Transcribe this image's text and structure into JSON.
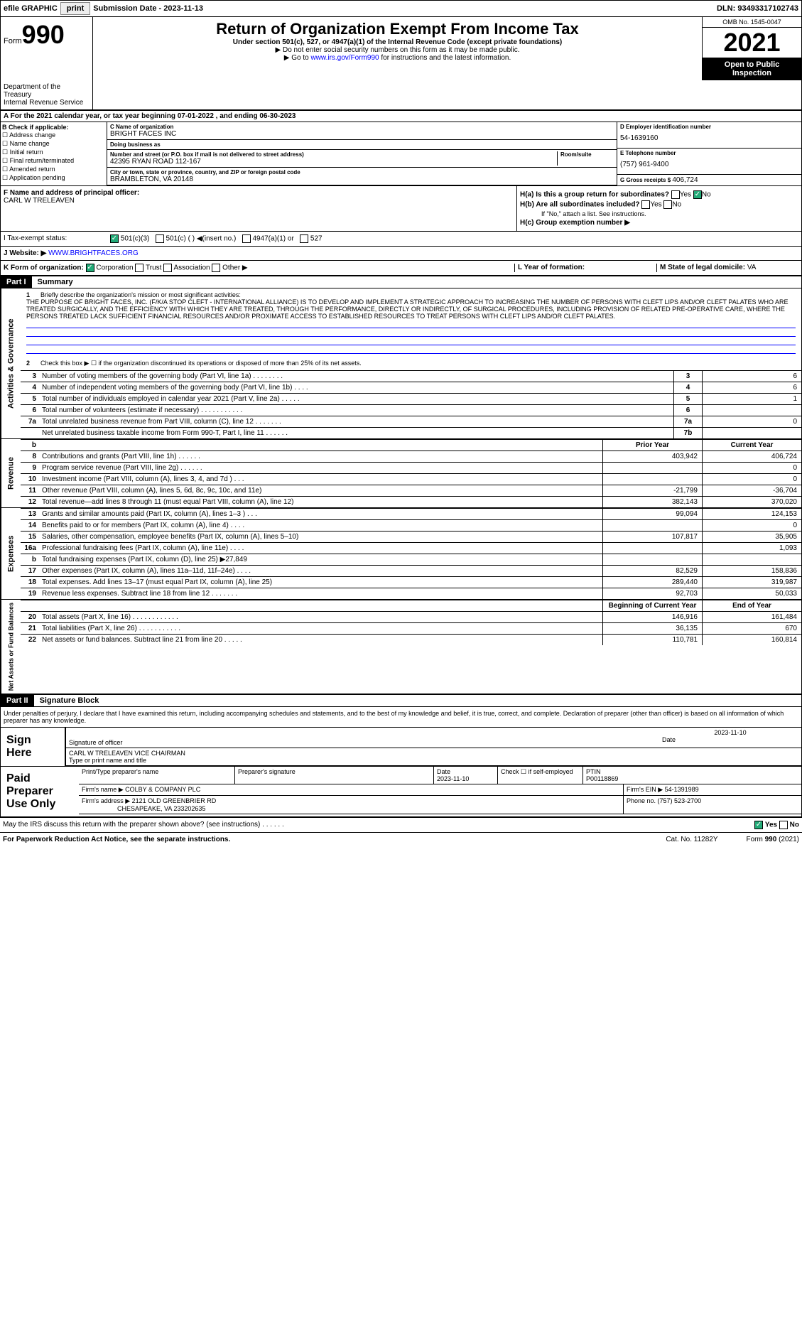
{
  "topbar": {
    "efile": "efile GRAPHIC",
    "print": "print",
    "submission_label": "Submission Date - ",
    "submission_date": "2023-11-13",
    "dln_label": "DLN: ",
    "dln": "93493317102743"
  },
  "header": {
    "form_label": "Form",
    "form_num": "990",
    "title": "Return of Organization Exempt From Income Tax",
    "subtitle": "Under section 501(c), 527, or 4947(a)(1) of the Internal Revenue Code (except private foundations)",
    "note1": "▶ Do not enter social security numbers on this form as it may be made public.",
    "note2_pre": "▶ Go to ",
    "note2_link": "www.irs.gov/Form990",
    "note2_post": " for instructions and the latest information.",
    "dept": "Department of the Treasury\nInternal Revenue Service",
    "omb": "OMB No. 1545-0047",
    "year": "2021",
    "open": "Open to Public Inspection"
  },
  "period": {
    "line": "For the 2021 calendar year, or tax year beginning 07-01-2022 , and ending 06-30-2023"
  },
  "box_b": {
    "label": "B Check if applicable:",
    "items": [
      "Address change",
      "Name change",
      "Initial return",
      "Final return/terminated",
      "Amended return",
      "Application pending"
    ]
  },
  "box_c": {
    "name_label": "C Name of organization",
    "name": "BRIGHT FACES INC",
    "dba_label": "Doing business as",
    "dba": "",
    "addr_label": "Number and street (or P.O. box if mail is not delivered to street address)",
    "addr": "42395 RYAN ROAD 112-167",
    "room_label": "Room/suite",
    "city_label": "City or town, state or province, country, and ZIP or foreign postal code",
    "city": "BRAMBLETON, VA  20148"
  },
  "box_d": {
    "ein_label": "D Employer identification number",
    "ein": "54-1639160",
    "phone_label": "E Telephone number",
    "phone": "(757) 961-9400",
    "gross_label": "G Gross receipts $ ",
    "gross": "406,724"
  },
  "box_f": {
    "label": "F  Name and address of principal officer:",
    "name": "CARL W TRELEAVEN"
  },
  "box_h": {
    "ha": "H(a)  Is this a group return for subordinates?",
    "hb": "H(b)  Are all subordinates included?",
    "hb_note": "If \"No,\" attach a list. See instructions.",
    "hc": "H(c)  Group exemption number ▶"
  },
  "box_i": {
    "label": "I   Tax-exempt status:",
    "opts": [
      "501(c)(3)",
      "501(c) (  ) ◀(insert no.)",
      "4947(a)(1) or",
      "527"
    ]
  },
  "box_j": {
    "label": "J   Website: ▶",
    "url": " WWW.BRIGHTFACES.ORG"
  },
  "box_k": {
    "label": "K Form of organization:",
    "opts": [
      "Corporation",
      "Trust",
      "Association",
      "Other ▶"
    ],
    "l_label": "L Year of formation:",
    "m_label": "M State of legal domicile: ",
    "m_val": "VA"
  },
  "part1": {
    "header": "Part I",
    "title": "Summary",
    "side_gov": "Activities & Governance",
    "side_rev": "Revenue",
    "side_exp": "Expenses",
    "side_net": "Net Assets or Fund Balances",
    "line1_label": "Briefly describe the organization's mission or most significant activities:",
    "line1_text": "THE PURPOSE OF BRIGHT FACES, INC. (F/K/A STOP CLEFT - INTERNATIONAL ALLIANCE) IS TO DEVELOP AND IMPLEMENT A STRATEGIC APPROACH TO INCREASING THE NUMBER OF PERSONS WITH CLEFT LIPS AND/OR CLEFT PALATES WHO ARE TREATED SURGICALLY, AND THE EFFICIENCY WITH WHICH THEY ARE TREATED, THROUGH THE PERFORMANCE, DIRECTLY OR INDIRECTLY, OF SURGICAL PROCEDURES, INCLUDING PROVISION OF RELATED PRE-OPERATIVE CARE, WHERE THE PERSONS TREATED LACK SUFFICIENT FINANCIAL RESOURCES AND/OR PROXIMATE ACCESS TO ESTABLISHED RESOURCES TO TREAT PERSONS WITH CLEFT LIPS AND/OR CLEFT PALATES.",
    "line2": "Check this box ▶ ☐ if the organization discontinued its operations or disposed of more than 25% of its net assets.",
    "rows_gov": [
      {
        "n": "3",
        "d": "Number of voting members of the governing body (Part VI, line 1a)  .   .   .   .   .   .   .   .",
        "box": "3",
        "v": "6"
      },
      {
        "n": "4",
        "d": "Number of independent voting members of the governing body (Part VI, line 1b)  .   .   .   .",
        "box": "4",
        "v": "6"
      },
      {
        "n": "5",
        "d": "Total number of individuals employed in calendar year 2021 (Part V, line 2a)  .   .   .   .   .",
        "box": "5",
        "v": "1"
      },
      {
        "n": "6",
        "d": "Total number of volunteers (estimate if necessary)  .   .   .   .   .   .   .   .   .   .   .",
        "box": "6",
        "v": ""
      },
      {
        "n": "7a",
        "d": "Total unrelated business revenue from Part VIII, column (C), line 12  .   .   .   .   .   .   .",
        "box": "7a",
        "v": "0"
      },
      {
        "n": "",
        "d": "Net unrelated business taxable income from Form 990-T, Part I, line 11  .   .   .   .   .   .",
        "box": "7b",
        "v": ""
      }
    ],
    "col_headers": {
      "prior": "Prior Year",
      "current": "Current Year"
    },
    "rows_rev": [
      {
        "n": "8",
        "d": "Contributions and grants (Part VIII, line 1h)  .   .   .   .   .   .",
        "p": "403,942",
        "c": "406,724"
      },
      {
        "n": "9",
        "d": "Program service revenue (Part VIII, line 2g)  .   .   .   .   .   .",
        "p": "",
        "c": "0"
      },
      {
        "n": "10",
        "d": "Investment income (Part VIII, column (A), lines 3, 4, and 7d )  .   .   .",
        "p": "",
        "c": "0"
      },
      {
        "n": "11",
        "d": "Other revenue (Part VIII, column (A), lines 5, 6d, 8c, 9c, 10c, and 11e)",
        "p": "-21,799",
        "c": "-36,704"
      },
      {
        "n": "12",
        "d": "Total revenue—add lines 8 through 11 (must equal Part VIII, column (A), line 12)",
        "p": "382,143",
        "c": "370,020"
      }
    ],
    "rows_exp": [
      {
        "n": "13",
        "d": "Grants and similar amounts paid (Part IX, column (A), lines 1–3 )  .   .   .",
        "p": "99,094",
        "c": "124,153"
      },
      {
        "n": "14",
        "d": "Benefits paid to or for members (Part IX, column (A), line 4)  .   .   .   .",
        "p": "",
        "c": "0"
      },
      {
        "n": "15",
        "d": "Salaries, other compensation, employee benefits (Part IX, column (A), lines 5–10)",
        "p": "107,817",
        "c": "35,905"
      },
      {
        "n": "16a",
        "d": "Professional fundraising fees (Part IX, column (A), line 11e)  .   .   .   .",
        "p": "",
        "c": "1,093"
      },
      {
        "n": "b",
        "d": "Total fundraising expenses (Part IX, column (D), line 25) ▶27,849",
        "p": "",
        "c": ""
      },
      {
        "n": "17",
        "d": "Other expenses (Part IX, column (A), lines 11a–11d, 11f–24e)  .   .   .   .",
        "p": "82,529",
        "c": "158,836"
      },
      {
        "n": "18",
        "d": "Total expenses. Add lines 13–17 (must equal Part IX, column (A), line 25)",
        "p": "289,440",
        "c": "319,987"
      },
      {
        "n": "19",
        "d": "Revenue less expenses. Subtract line 18 from line 12  .   .   .   .   .   .   .",
        "p": "92,703",
        "c": "50,033"
      }
    ],
    "col_headers2": {
      "begin": "Beginning of Current Year",
      "end": "End of Year"
    },
    "rows_net": [
      {
        "n": "20",
        "d": "Total assets (Part X, line 16)  .   .   .   .   .   .   .   .   .   .   .   .",
        "p": "146,916",
        "c": "161,484"
      },
      {
        "n": "21",
        "d": "Total liabilities (Part X, line 26)  .   .   .   .   .   .   .   .   .   .   .",
        "p": "36,135",
        "c": "670"
      },
      {
        "n": "22",
        "d": "Net assets or fund balances. Subtract line 21 from line 20  .   .   .   .   .",
        "p": "110,781",
        "c": "160,814"
      }
    ]
  },
  "part2": {
    "header": "Part II",
    "title": "Signature Block",
    "penalty": "Under penalties of perjury, I declare that I have examined this return, including accompanying schedules and statements, and to the best of my knowledge and belief, it is true, correct, and complete. Declaration of preparer (other than officer) is based on all information of which preparer has any knowledge.",
    "sign_here": "Sign Here",
    "sig_officer": "Signature of officer",
    "sig_date": "2023-11-10",
    "sig_date_label": "Date",
    "sig_name": "CARL W TRELEAVEN  VICE CHAIRMAN",
    "sig_name_label": "Type or print name and title",
    "paid": "Paid Preparer Use Only",
    "prep_name_label": "Print/Type preparer's name",
    "prep_sig_label": "Preparer's signature",
    "prep_date_label": "Date",
    "prep_date": "2023-11-10",
    "prep_check_label": "Check ☐ if self-employed",
    "ptin_label": "PTIN",
    "ptin": "P00118869",
    "firm_name_label": "Firm's name    ▶ ",
    "firm_name": "COLBY & COMPANY PLC",
    "firm_ein_label": "Firm's EIN ▶ ",
    "firm_ein": "54-1391989",
    "firm_addr_label": "Firm's address ▶ ",
    "firm_addr": "2121 OLD GREENBRIER RD",
    "firm_city": "CHESAPEAKE, VA  233202635",
    "firm_phone_label": "Phone no. ",
    "firm_phone": "(757) 523-2700"
  },
  "footer": {
    "discuss": "May the IRS discuss this return with the preparer shown above? (see instructions)   .   .   .   .   .   .",
    "yes": "Yes",
    "no": "No",
    "paperwork": "For Paperwork Reduction Act Notice, see the separate instructions.",
    "cat": "Cat. No. 11282Y",
    "form": "Form 990 (2021)"
  }
}
